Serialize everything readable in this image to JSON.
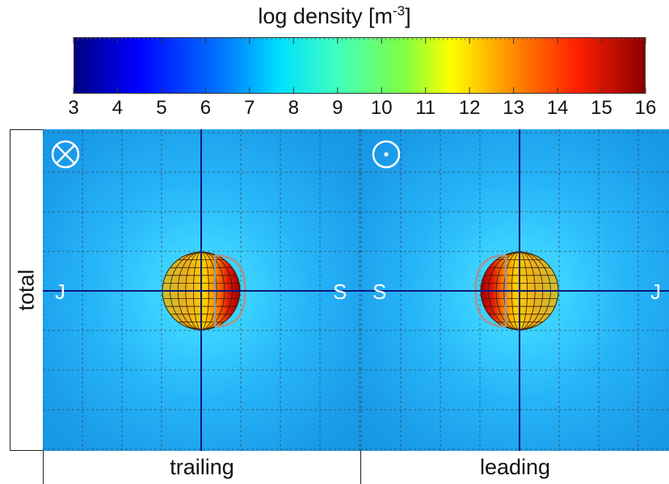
{
  "chart_data": {
    "type": "heatmap",
    "colorbar": {
      "title_base": "log density [m",
      "title_sup": "-3",
      "title_end": "]",
      "ticks": [
        "3",
        "4",
        "5",
        "6",
        "7",
        "8",
        "9",
        "10",
        "11",
        "12",
        "13",
        "14",
        "15",
        "16"
      ],
      "range": [
        3,
        16
      ],
      "colormap": "jet"
    },
    "row_label": "total",
    "panels": [
      {
        "label": "trailing",
        "direction_symbol": "into-page",
        "left_marker": "J",
        "right_marker": "S",
        "dense_side": "right",
        "background_log_density": 6.5,
        "peak_log_density": 15.5
      },
      {
        "label": "leading",
        "direction_symbol": "out-of-page",
        "left_marker": "S",
        "right_marker": "J",
        "dense_side": "left",
        "background_log_density": 6.5,
        "peak_log_density": 15.5
      }
    ],
    "grid": true,
    "colors": {
      "background": "#1a9ae8",
      "axes": "#0a1a7a",
      "grid": "#333333",
      "markers": "#ffffff"
    }
  }
}
